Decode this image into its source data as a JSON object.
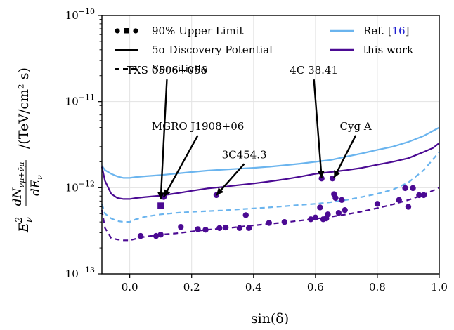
{
  "chart_data": {
    "type": "line",
    "xlabel": "sin(δ)",
    "ylabel_parts": {
      "main": "E",
      "sup": "2",
      "sub": "ν",
      "frac_num": "dN",
      "frac_num_sub": "νμ+ν̄μ",
      "frac_den": "dE",
      "frac_den_sub": "ν",
      "units": "/(TeV/cm² s)"
    },
    "xlim": [
      -0.09,
      1.0
    ],
    "ylim": [
      1e-13,
      1e-10
    ],
    "yscale": "log",
    "x_ticks": [
      {
        "v": 0.0,
        "label": "0.0"
      },
      {
        "v": 0.2,
        "label": "0.2"
      },
      {
        "v": 0.4,
        "label": "0.4"
      },
      {
        "v": 0.6,
        "label": "0.6"
      },
      {
        "v": 0.8,
        "label": "0.8"
      },
      {
        "v": 1.0,
        "label": "1.0"
      }
    ],
    "y_ticks": [
      {
        "v": 1e-13,
        "base": "10",
        "exp": "−13"
      },
      {
        "v": 1e-12,
        "base": "10",
        "exp": "−12"
      },
      {
        "v": 1e-11,
        "base": "10",
        "exp": "−11"
      },
      {
        "v": 1e-10,
        "base": "10",
        "exp": "−10"
      }
    ],
    "grid": true,
    "legend": {
      "placement": "top",
      "left_entries": [
        {
          "marker": "points",
          "label": "90% Upper Limit"
        },
        {
          "marker": "solid",
          "label": "5σ Discovery Potential"
        },
        {
          "marker": "dashed",
          "label": "Sensitivity"
        }
      ],
      "right_entries": [
        {
          "color": "#6ab4ee",
          "label_prefix": "Ref. [",
          "label_ref": "16",
          "label_suffix": "]"
        },
        {
          "color": "#4b0a93",
          "label_prefix": "this work",
          "label_ref": "",
          "label_suffix": ""
        }
      ]
    },
    "series": [
      {
        "name": "Ref. [16]",
        "style": "solid",
        "color": "#6ab4ee",
        "x": [
          -0.09,
          -0.08,
          -0.06,
          -0.04,
          -0.02,
          0.0,
          0.02,
          0.05,
          0.1,
          0.15,
          0.2,
          0.25,
          0.3,
          0.35,
          0.4,
          0.45,
          0.5,
          0.55,
          0.6,
          0.65,
          0.7,
          0.75,
          0.8,
          0.85,
          0.9,
          0.95,
          1.0
        ],
        "y": [
          1.8e-12,
          1.6e-12,
          1.45e-12,
          1.35e-12,
          1.3e-12,
          1.3e-12,
          1.33e-12,
          1.36e-12,
          1.4e-12,
          1.46e-12,
          1.52e-12,
          1.58e-12,
          1.62e-12,
          1.66e-12,
          1.7e-12,
          1.75e-12,
          1.82e-12,
          1.9e-12,
          2e-12,
          2.1e-12,
          2.3e-12,
          2.5e-12,
          2.75e-12,
          3e-12,
          3.4e-12,
          4e-12,
          5e-12
        ]
      },
      {
        "name": "this work",
        "style": "solid",
        "color": "#4b0a93",
        "x": [
          -0.09,
          -0.08,
          -0.06,
          -0.04,
          -0.02,
          0.0,
          0.02,
          0.05,
          0.1,
          0.15,
          0.2,
          0.25,
          0.3,
          0.35,
          0.4,
          0.45,
          0.5,
          0.55,
          0.6,
          0.65,
          0.7,
          0.75,
          0.8,
          0.85,
          0.9,
          0.95,
          0.98,
          1.0
        ],
        "y": [
          1.75e-12,
          1.2e-12,
          8.5e-13,
          7.6e-13,
          7.4e-13,
          7.4e-13,
          7.6e-13,
          7.8e-13,
          8.1e-13,
          8.6e-13,
          9.2e-13,
          9.8e-13,
          1.02e-12,
          1.07e-12,
          1.12e-12,
          1.18e-12,
          1.25e-12,
          1.34e-12,
          1.45e-12,
          1.52e-12,
          1.6e-12,
          1.7e-12,
          1.85e-12,
          2e-12,
          2.2e-12,
          2.6e-12,
          2.9e-12,
          3.3e-12
        ]
      },
      {
        "name": "Ref. [16] sensitivity",
        "style": "dashed",
        "color": "#6ab4ee",
        "x": [
          -0.09,
          -0.08,
          -0.06,
          -0.04,
          -0.02,
          0.0,
          0.02,
          0.05,
          0.1,
          0.15,
          0.2,
          0.25,
          0.3,
          0.35,
          0.4,
          0.45,
          0.5,
          0.55,
          0.6,
          0.65,
          0.7,
          0.75,
          0.8,
          0.85,
          0.9,
          0.95,
          1.0
        ],
        "y": [
          6.5e-13,
          5e-13,
          4.4e-13,
          4.1e-13,
          4e-13,
          4e-13,
          4.3e-13,
          4.6e-13,
          4.9e-13,
          5.1e-13,
          5.25e-13,
          5.35e-13,
          5.45e-13,
          5.6e-13,
          5.75e-13,
          5.9e-13,
          6.1e-13,
          6.3e-13,
          6.5e-13,
          6.8e-13,
          7.2e-13,
          7.8e-13,
          8.5e-13,
          9.5e-13,
          1.15e-12,
          1.6e-12,
          2.6e-12
        ]
      },
      {
        "name": "this work sensitivity",
        "style": "dashed",
        "color": "#4b0a93",
        "x": [
          -0.09,
          -0.08,
          -0.06,
          -0.04,
          -0.02,
          0.0,
          0.02,
          0.05,
          0.1,
          0.15,
          0.2,
          0.25,
          0.3,
          0.35,
          0.4,
          0.45,
          0.5,
          0.55,
          0.6,
          0.65,
          0.7,
          0.75,
          0.8,
          0.85,
          0.9,
          0.95,
          1.0
        ],
        "y": [
          5.5e-13,
          3.4e-13,
          2.6e-13,
          2.5e-13,
          2.45e-13,
          2.45e-13,
          2.55e-13,
          2.7e-13,
          2.85e-13,
          2.95e-13,
          3.1e-13,
          3.25e-13,
          3.35e-13,
          3.5e-13,
          3.65e-13,
          3.8e-13,
          3.95e-13,
          4.15e-13,
          4.35e-13,
          4.6e-13,
          4.9e-13,
          5.3e-13,
          5.8e-13,
          6.4e-13,
          7.2e-13,
          8.3e-13,
          1e-12
        ]
      }
    ],
    "upper_limits": {
      "color": "#4b0a93",
      "points": [
        {
          "x": 0.035,
          "y": 2.75e-13,
          "m": "circle"
        },
        {
          "x": 0.085,
          "y": 2.75e-13,
          "m": "circle"
        },
        {
          "x": 0.1,
          "y": 2.85e-13,
          "m": "circle"
        },
        {
          "x": 0.11,
          "y": 7.8e-13,
          "m": "circle"
        },
        {
          "x": 0.1,
          "y": 6.2e-13,
          "m": "square"
        },
        {
          "x": 0.165,
          "y": 3.5e-13,
          "m": "circle"
        },
        {
          "x": 0.22,
          "y": 3.3e-13,
          "m": "circle"
        },
        {
          "x": 0.245,
          "y": 3.25e-13,
          "m": "circle"
        },
        {
          "x": 0.28,
          "y": 8.2e-13,
          "m": "circle"
        },
        {
          "x": 0.29,
          "y": 3.4e-13,
          "m": "circle"
        },
        {
          "x": 0.31,
          "y": 3.45e-13,
          "m": "circle"
        },
        {
          "x": 0.355,
          "y": 3.4e-13,
          "m": "circle"
        },
        {
          "x": 0.375,
          "y": 4.8e-13,
          "m": "circle"
        },
        {
          "x": 0.385,
          "y": 3.4e-13,
          "m": "circle"
        },
        {
          "x": 0.45,
          "y": 3.9e-13,
          "m": "circle"
        },
        {
          "x": 0.5,
          "y": 4e-13,
          "m": "circle"
        },
        {
          "x": 0.585,
          "y": 4.3e-13,
          "m": "circle"
        },
        {
          "x": 0.6,
          "y": 4.5e-13,
          "m": "circle"
        },
        {
          "x": 0.615,
          "y": 5.9e-13,
          "m": "circle"
        },
        {
          "x": 0.62,
          "y": 1.28e-12,
          "m": "circle"
        },
        {
          "x": 0.625,
          "y": 4.3e-13,
          "m": "circle"
        },
        {
          "x": 0.635,
          "y": 4.4e-13,
          "m": "circle"
        },
        {
          "x": 0.64,
          "y": 4.9e-13,
          "m": "circle"
        },
        {
          "x": 0.655,
          "y": 1.28e-12,
          "m": "circle"
        },
        {
          "x": 0.66,
          "y": 8.4e-13,
          "m": "circle"
        },
        {
          "x": 0.665,
          "y": 7.6e-13,
          "m": "circle"
        },
        {
          "x": 0.675,
          "y": 5.1e-13,
          "m": "circle"
        },
        {
          "x": 0.685,
          "y": 7.2e-13,
          "m": "circle"
        },
        {
          "x": 0.695,
          "y": 5.5e-13,
          "m": "circle"
        },
        {
          "x": 0.8,
          "y": 6.5e-13,
          "m": "circle"
        },
        {
          "x": 0.87,
          "y": 7.2e-13,
          "m": "circle"
        },
        {
          "x": 0.89,
          "y": 9.9e-13,
          "m": "circle"
        },
        {
          "x": 0.9,
          "y": 6e-13,
          "m": "circle"
        },
        {
          "x": 0.915,
          "y": 9.9e-13,
          "m": "circle"
        },
        {
          "x": 0.935,
          "y": 8.2e-13,
          "m": "circle"
        },
        {
          "x": 0.95,
          "y": 8.2e-13,
          "m": "circle"
        }
      ]
    },
    "annotations": [
      {
        "text": "TXS 0506+056",
        "tx": 0.12,
        "ty": 2.1e-11,
        "ax": 0.1,
        "ay": 7.3e-13
      },
      {
        "text": "MGRO J1908+06",
        "tx": 0.22,
        "ty": 4.7e-12,
        "ax": 0.11,
        "ay": 7.8e-13
      },
      {
        "text": "3C454.3",
        "tx": 0.37,
        "ty": 2.2e-12,
        "ax": 0.28,
        "ay": 8.2e-13
      },
      {
        "text": "4C 38.41",
        "tx": 0.595,
        "ty": 2.1e-11,
        "ax": 0.62,
        "ay": 1.3e-12
      },
      {
        "text": "Cyg A",
        "tx": 0.73,
        "ty": 4.7e-12,
        "ax": 0.66,
        "ay": 1.3e-12
      }
    ]
  }
}
